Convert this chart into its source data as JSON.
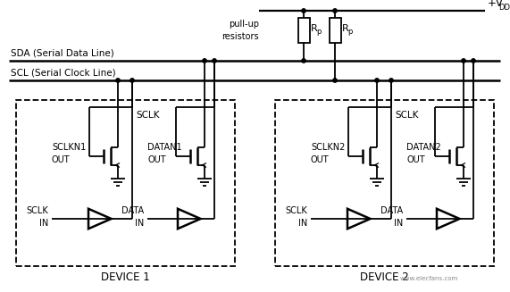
{
  "bg_color": "#ffffff",
  "line_color": "#000000",
  "figsize": [
    5.71,
    3.27
  ],
  "dpi": 100,
  "sda_label": "SDA (Serial Data Line)",
  "scl_label": "SCL (Serial Clock Line)",
  "pullup_label": "pull-up\nresistors",
  "device1_label": "DEVICE 1",
  "device2_label": "DEVICE 2",
  "sclk_label": "SCLK",
  "sclkn1_label": "SCLKN1\nOUT",
  "datan1_label": "DATAN1\nOUT",
  "sclkn2_label": "SCLKN2\nOUT",
  "datan2_label": "DATAN2\nOUT",
  "sclk_in1_label": "SCLK\nIN",
  "data_in1_label": "DATA\nIN",
  "sclk_in2_label": "SCLK\nIN",
  "data_in2_label": "DATA\nIN",
  "vdd_label": "+V",
  "vdd_sub": "DD",
  "rp_label": "R",
  "rp_sub": "p",
  "watermark": "www.elecfans.com"
}
